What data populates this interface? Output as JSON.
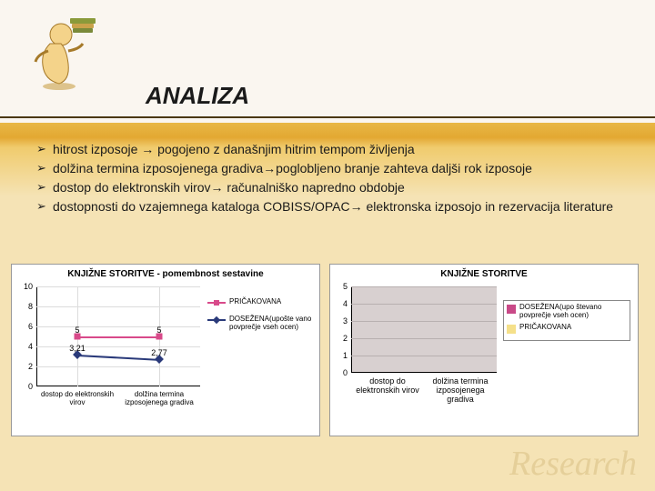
{
  "title": "ANALIZA",
  "bullets": [
    "hitrost izposoje → pogojeno z današnjim hitrim tempom življenja",
    "dolžina termina izposojenega gradiva→poglobljeno branje zahteva daljši rok izposoje",
    "dostop do elektronskih virov→ računalniško napredno obdobje",
    "dostopnosti do vzajemnega kataloga COBISS/OPAC→ elektronska izposojo in rezervacija literature"
  ],
  "chart_left": {
    "type": "scatter-line",
    "title": "KNJIŽNE STORITVE - pomembnost sestavine",
    "categories": [
      "dostop do elektronskih virov",
      "dolžina termina izposojenega gradiva"
    ],
    "series": [
      {
        "name": "PRIČAKOVANA",
        "values": [
          5,
          5
        ],
        "color": "#d84a8a",
        "marker": "square"
      },
      {
        "name": "DOSEŽENA(upošte vano povprečje vseh ocen)",
        "values": [
          3.21,
          2.77
        ],
        "color": "#2a3a7a",
        "marker": "diamond"
      }
    ],
    "ylim": [
      0,
      10
    ],
    "ytick_step": 2,
    "bg": "#ffffff",
    "grid_color": "#dcdcdc"
  },
  "chart_right": {
    "type": "bar",
    "title": "KNJIŽNE STORITVE",
    "categories": [
      "dostop do elektronskih virov",
      "dolžina termina izposojenega gradiva"
    ],
    "series": [
      {
        "name": "DOSEŽENA(upo števano povprečje vseh ocen)",
        "values": [
          0,
          0
        ],
        "color": "#c94a88"
      },
      {
        "name": "PRIČAKOVANA",
        "values": [
          0,
          0
        ],
        "color": "#f5e08a"
      }
    ],
    "ylim": [
      0,
      5
    ],
    "ytick_step": 1,
    "plot_bg": "#d8d0d0",
    "grid_color": "#b8b0b0"
  },
  "watermark": "Research",
  "colors": {
    "slide_top": "#faf6f0",
    "slide_band": "#e8b846",
    "slide_lower": "#f5e3b5"
  }
}
